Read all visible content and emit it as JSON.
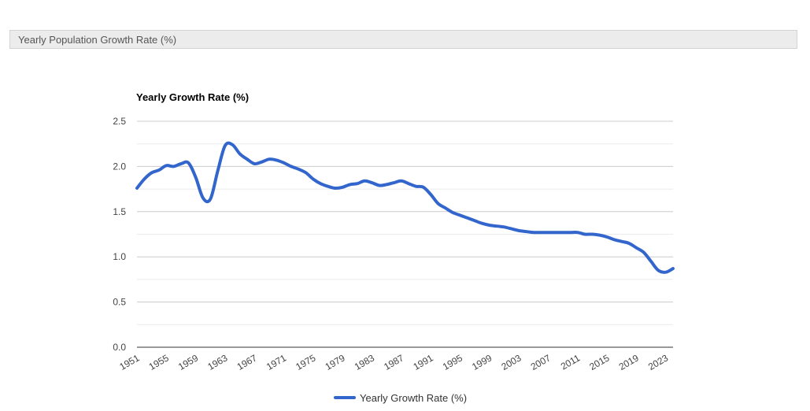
{
  "panel": {
    "title": "Yearly Population Growth Rate (%)"
  },
  "chart_data": {
    "type": "line",
    "title": "",
    "ylabel": "Yearly Growth Rate (%)",
    "xlabel": "",
    "ylim": [
      0,
      2.5
    ],
    "y_ticks": [
      "0.0",
      "0.5",
      "1.0",
      "1.5",
      "2.0",
      "2.5"
    ],
    "x_range": [
      1951,
      2024
    ],
    "x_ticks": [
      "1951",
      "1955",
      "1959",
      "1963",
      "1967",
      "1971",
      "1975",
      "1979",
      "1983",
      "1987",
      "1991",
      "1995",
      "1999",
      "2003",
      "2007",
      "2011",
      "2015",
      "2019",
      "2023"
    ],
    "grid": true,
    "legend": "bottom",
    "series": [
      {
        "name": "Yearly Growth Rate (%)",
        "color": "#3366cc",
        "x": [
          1951,
          1952,
          1953,
          1954,
          1955,
          1956,
          1957,
          1958,
          1959,
          1960,
          1961,
          1962,
          1963,
          1964,
          1965,
          1966,
          1967,
          1968,
          1969,
          1970,
          1971,
          1972,
          1973,
          1974,
          1975,
          1976,
          1977,
          1978,
          1979,
          1980,
          1981,
          1982,
          1983,
          1984,
          1985,
          1986,
          1987,
          1988,
          1989,
          1990,
          1991,
          1992,
          1993,
          1994,
          1995,
          1996,
          1997,
          1998,
          1999,
          2000,
          2001,
          2002,
          2003,
          2004,
          2005,
          2006,
          2007,
          2008,
          2009,
          2010,
          2011,
          2012,
          2013,
          2014,
          2015,
          2016,
          2017,
          2018,
          2019,
          2020,
          2021,
          2022,
          2023,
          2024
        ],
        "y": [
          1.76,
          1.86,
          1.93,
          1.96,
          2.01,
          2.0,
          2.03,
          2.04,
          1.88,
          1.65,
          1.64,
          1.95,
          2.23,
          2.24,
          2.14,
          2.08,
          2.03,
          2.05,
          2.08,
          2.07,
          2.04,
          2.0,
          1.97,
          1.93,
          1.86,
          1.81,
          1.78,
          1.76,
          1.77,
          1.8,
          1.81,
          1.84,
          1.82,
          1.79,
          1.8,
          1.82,
          1.84,
          1.81,
          1.78,
          1.77,
          1.69,
          1.59,
          1.54,
          1.49,
          1.46,
          1.43,
          1.4,
          1.37,
          1.35,
          1.34,
          1.33,
          1.31,
          1.29,
          1.28,
          1.27,
          1.27,
          1.27,
          1.27,
          1.27,
          1.27,
          1.27,
          1.25,
          1.25,
          1.24,
          1.22,
          1.19,
          1.17,
          1.15,
          1.1,
          1.05,
          0.95,
          0.85,
          0.83,
          0.87
        ]
      }
    ]
  }
}
